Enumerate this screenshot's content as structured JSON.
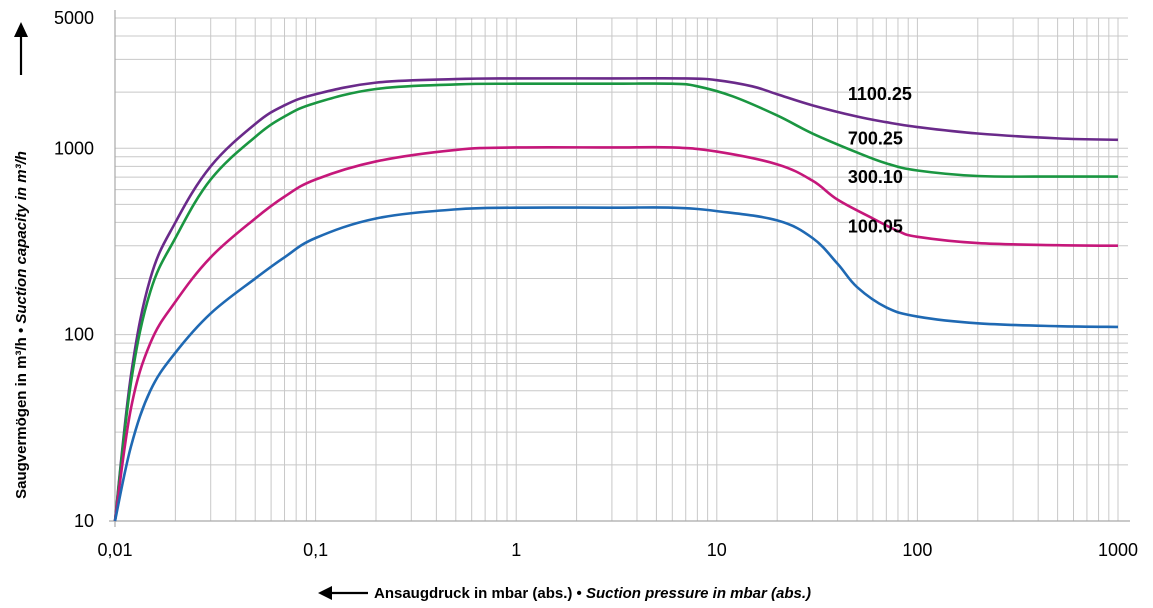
{
  "chart_data": {
    "type": "line",
    "xscale": "log",
    "yscale": "log",
    "xlim": [
      0.01,
      1000
    ],
    "ylim": [
      10,
      5000
    ],
    "grid": true,
    "xlabel": {
      "de": "Ansaugdruck in mbar (abs.)",
      "sep": " • ",
      "en": "Suction pressure in mbar (abs.)"
    },
    "ylabel": {
      "de": "Saugvermögen in m³/h",
      "sep": " • ",
      "en": "Suction capacity in m³/h"
    },
    "x_ticks": [
      {
        "value": 0.01,
        "label": "0,01"
      },
      {
        "value": 0.1,
        "label": "0,1"
      },
      {
        "value": 1,
        "label": "1"
      },
      {
        "value": 10,
        "label": "10"
      },
      {
        "value": 100,
        "label": "100"
      },
      {
        "value": 1000,
        "label": "1000"
      }
    ],
    "y_ticks": [
      {
        "value": 10,
        "label": "10"
      },
      {
        "value": 100,
        "label": "100"
      },
      {
        "value": 1000,
        "label": "1000"
      },
      {
        "value": 5000,
        "label": "5000"
      }
    ],
    "series": [
      {
        "name": "1100.25",
        "color": "#6a2a8a",
        "label_at": [
          45,
          1950
        ],
        "points": [
          [
            0.01,
            10
          ],
          [
            0.012,
            60
          ],
          [
            0.015,
            200
          ],
          [
            0.02,
            400
          ],
          [
            0.03,
            800
          ],
          [
            0.05,
            1350
          ],
          [
            0.07,
            1700
          ],
          [
            0.1,
            1950
          ],
          [
            0.2,
            2250
          ],
          [
            0.5,
            2350
          ],
          [
            1,
            2370
          ],
          [
            3,
            2370
          ],
          [
            7,
            2370
          ],
          [
            10,
            2320
          ],
          [
            15,
            2150
          ],
          [
            20,
            1950
          ],
          [
            30,
            1700
          ],
          [
            50,
            1480
          ],
          [
            70,
            1380
          ],
          [
            100,
            1300
          ],
          [
            200,
            1200
          ],
          [
            500,
            1130
          ],
          [
            1000,
            1110
          ]
        ]
      },
      {
        "name": "700.25",
        "color": "#1a9641",
        "label_at": [
          45,
          1130
        ],
        "points": [
          [
            0.01,
            10
          ],
          [
            0.012,
            55
          ],
          [
            0.015,
            170
          ],
          [
            0.02,
            330
          ],
          [
            0.03,
            680
          ],
          [
            0.05,
            1150
          ],
          [
            0.07,
            1480
          ],
          [
            0.1,
            1750
          ],
          [
            0.2,
            2080
          ],
          [
            0.5,
            2200
          ],
          [
            1,
            2220
          ],
          [
            3,
            2220
          ],
          [
            6,
            2220
          ],
          [
            8,
            2150
          ],
          [
            12,
            1900
          ],
          [
            20,
            1500
          ],
          [
            30,
            1200
          ],
          [
            50,
            950
          ],
          [
            70,
            830
          ],
          [
            100,
            760
          ],
          [
            200,
            710
          ],
          [
            500,
            705
          ],
          [
            1000,
            705
          ]
        ]
      },
      {
        "name": "300.10",
        "color": "#c5177a",
        "label_at": [
          45,
          700
        ],
        "points": [
          [
            0.01,
            10
          ],
          [
            0.012,
            40
          ],
          [
            0.015,
            90
          ],
          [
            0.02,
            150
          ],
          [
            0.03,
            260
          ],
          [
            0.05,
            420
          ],
          [
            0.07,
            550
          ],
          [
            0.1,
            680
          ],
          [
            0.2,
            850
          ],
          [
            0.5,
            980
          ],
          [
            1,
            1010
          ],
          [
            3,
            1010
          ],
          [
            6,
            1010
          ],
          [
            10,
            960
          ],
          [
            20,
            820
          ],
          [
            30,
            670
          ],
          [
            40,
            530
          ],
          [
            60,
            420
          ],
          [
            80,
            360
          ],
          [
            100,
            335
          ],
          [
            200,
            310
          ],
          [
            500,
            302
          ],
          [
            1000,
            300
          ]
        ]
      },
      {
        "name": "100.05",
        "color": "#1f69b3",
        "label_at": [
          45,
          380
        ],
        "points": [
          [
            0.01,
            10
          ],
          [
            0.012,
            25
          ],
          [
            0.015,
            50
          ],
          [
            0.02,
            80
          ],
          [
            0.03,
            130
          ],
          [
            0.05,
            200
          ],
          [
            0.07,
            260
          ],
          [
            0.1,
            330
          ],
          [
            0.2,
            420
          ],
          [
            0.5,
            470
          ],
          [
            1,
            480
          ],
          [
            3,
            480
          ],
          [
            6,
            480
          ],
          [
            10,
            460
          ],
          [
            20,
            410
          ],
          [
            30,
            330
          ],
          [
            40,
            240
          ],
          [
            50,
            180
          ],
          [
            70,
            140
          ],
          [
            100,
            125
          ],
          [
            200,
            115
          ],
          [
            500,
            111
          ],
          [
            1000,
            110
          ]
        ]
      }
    ]
  }
}
